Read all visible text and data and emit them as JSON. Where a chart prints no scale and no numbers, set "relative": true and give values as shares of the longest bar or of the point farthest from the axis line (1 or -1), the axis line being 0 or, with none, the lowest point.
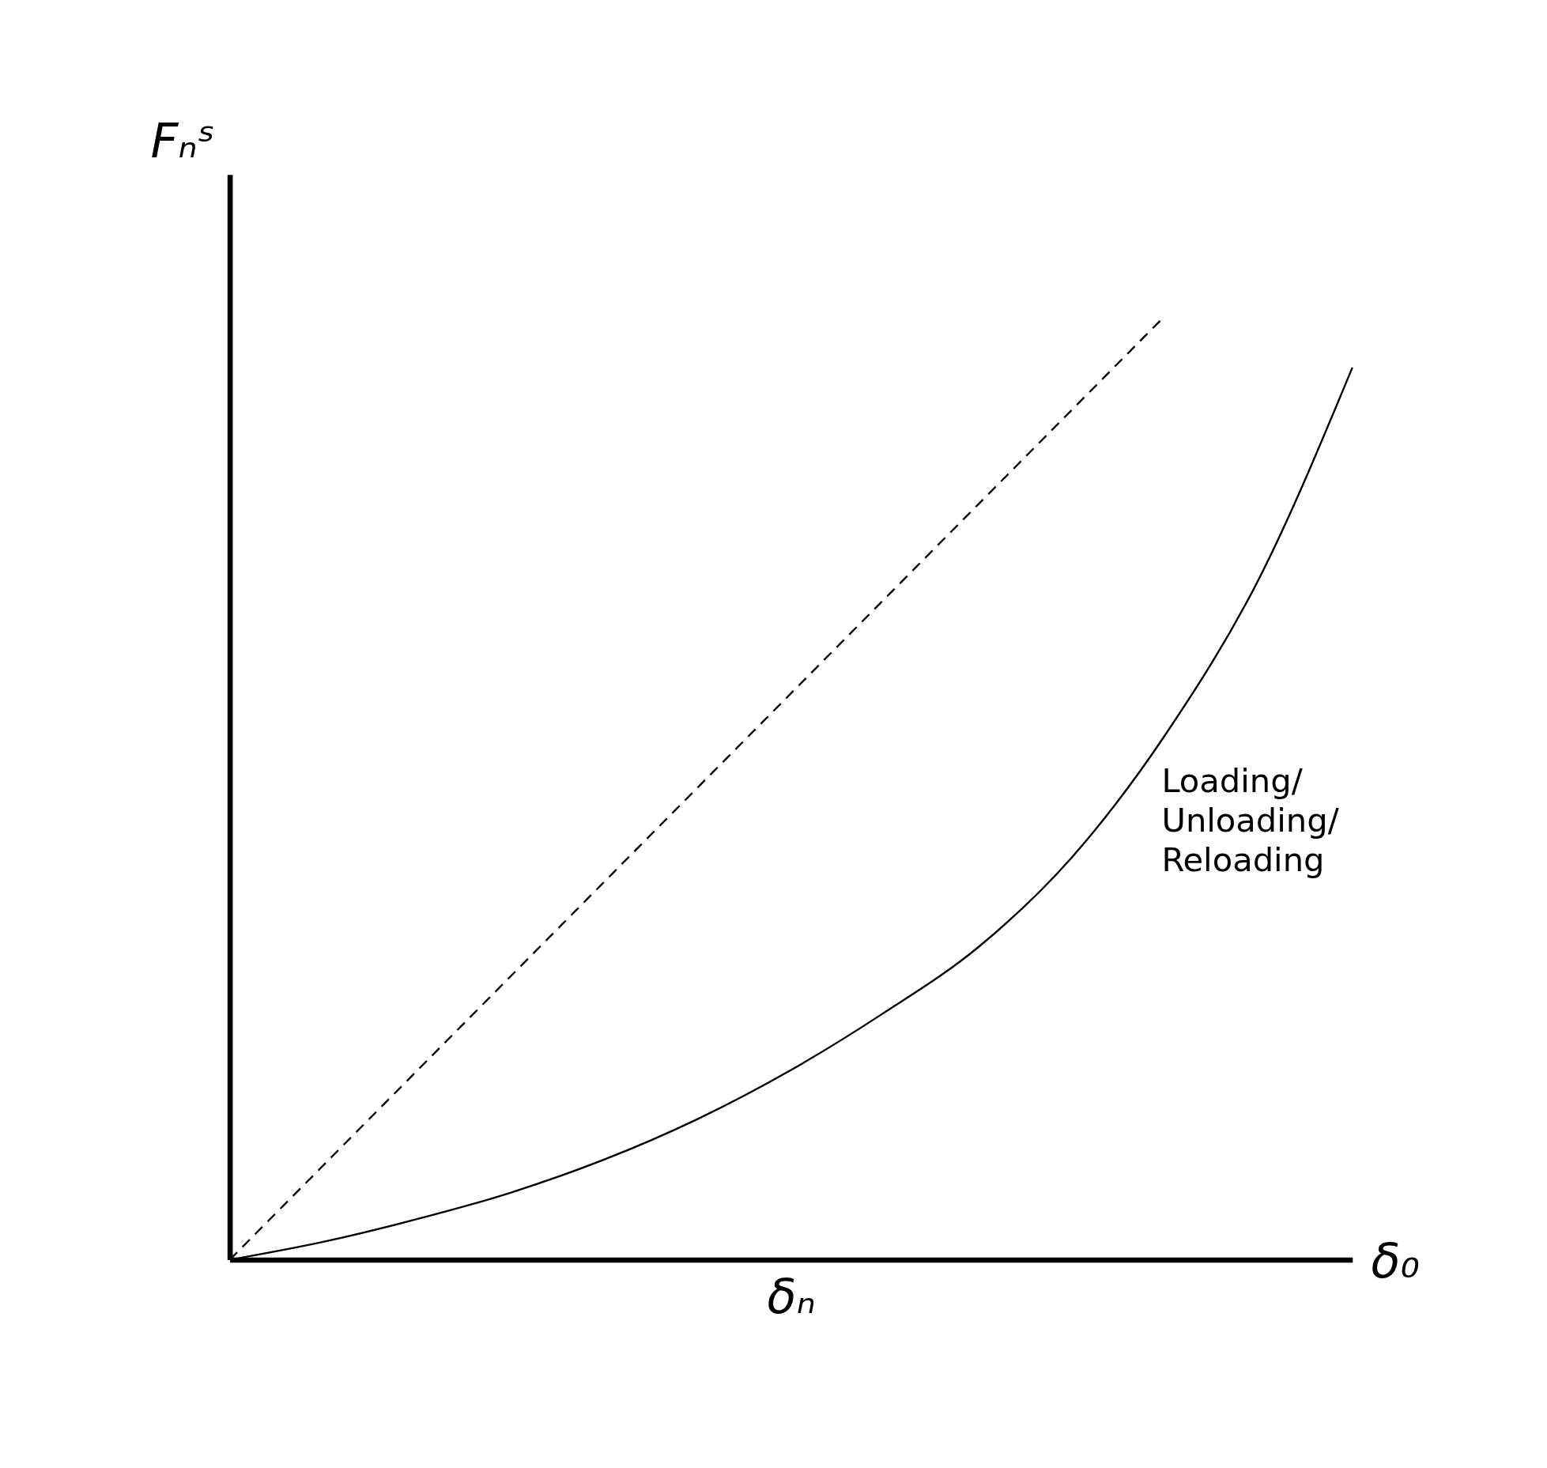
{
  "chart_data": {
    "type": "line",
    "relative": true,
    "xlabel": "δₙ",
    "ylabel": "Fₙˢ",
    "categories": [
      null,
      null,
      null,
      null,
      null,
      null,
      null,
      null,
      null,
      null,
      null,
      null,
      null
    ],
    "series": [
      {
        "color": "#000000",
        "line_style": "dashed",
        "values": [
          0,
          0.1,
          0.2,
          0.3,
          0.4,
          0.5,
          0.6,
          0.7,
          0.8,
          0.9,
          1.0,
          null,
          null
        ]
      },
      {
        "color": "#000000",
        "line_style": "solid",
        "values": [
          0,
          0.019,
          0.043,
          0.071,
          0.106,
          0.149,
          0.201,
          0.262,
          0.331,
          0.426,
          0.556,
          0.721,
          0.945
        ]
      }
    ],
    "annotations": [
      "δ₀",
      "Loading/\nUnloading/\nReloading"
    ],
    "grid": false,
    "tick_labels": false,
    "marker": "none"
  }
}
